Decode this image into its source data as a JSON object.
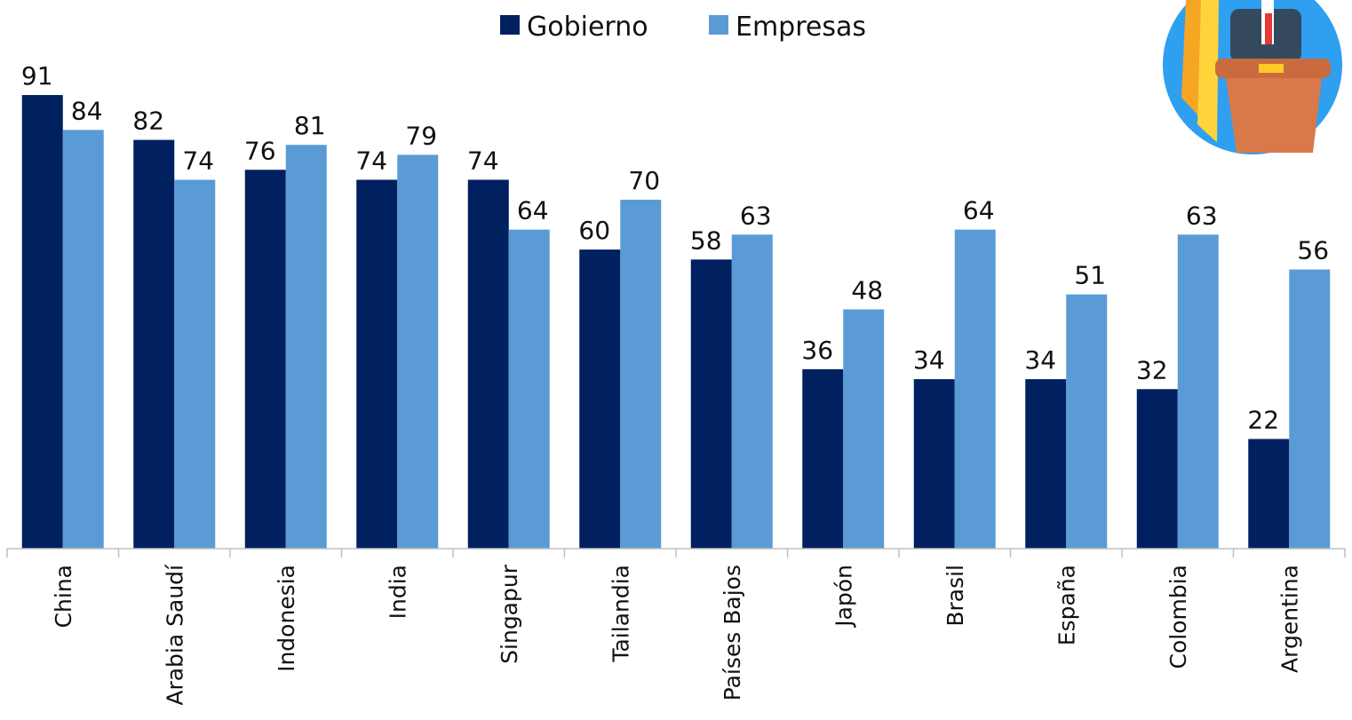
{
  "chart_data": {
    "type": "grouped_bar",
    "categories": [
      "China",
      "Arabia Saudí",
      "Indonesia",
      "India",
      "Singapur",
      "Tailandia",
      "Países Bajos",
      "Japón",
      "Brasil",
      "España",
      "Colombia",
      "Argentina"
    ],
    "series": [
      {
        "name": "Gobierno",
        "color": "#002060",
        "values": [
          91,
          82,
          76,
          74,
          74,
          60,
          58,
          36,
          34,
          34,
          32,
          22
        ]
      },
      {
        "name": "Empresas",
        "color": "#5b9bd5",
        "values": [
          84,
          74,
          81,
          79,
          64,
          70,
          63,
          48,
          64,
          51,
          63,
          56
        ]
      }
    ],
    "legend": "top"
  }
}
